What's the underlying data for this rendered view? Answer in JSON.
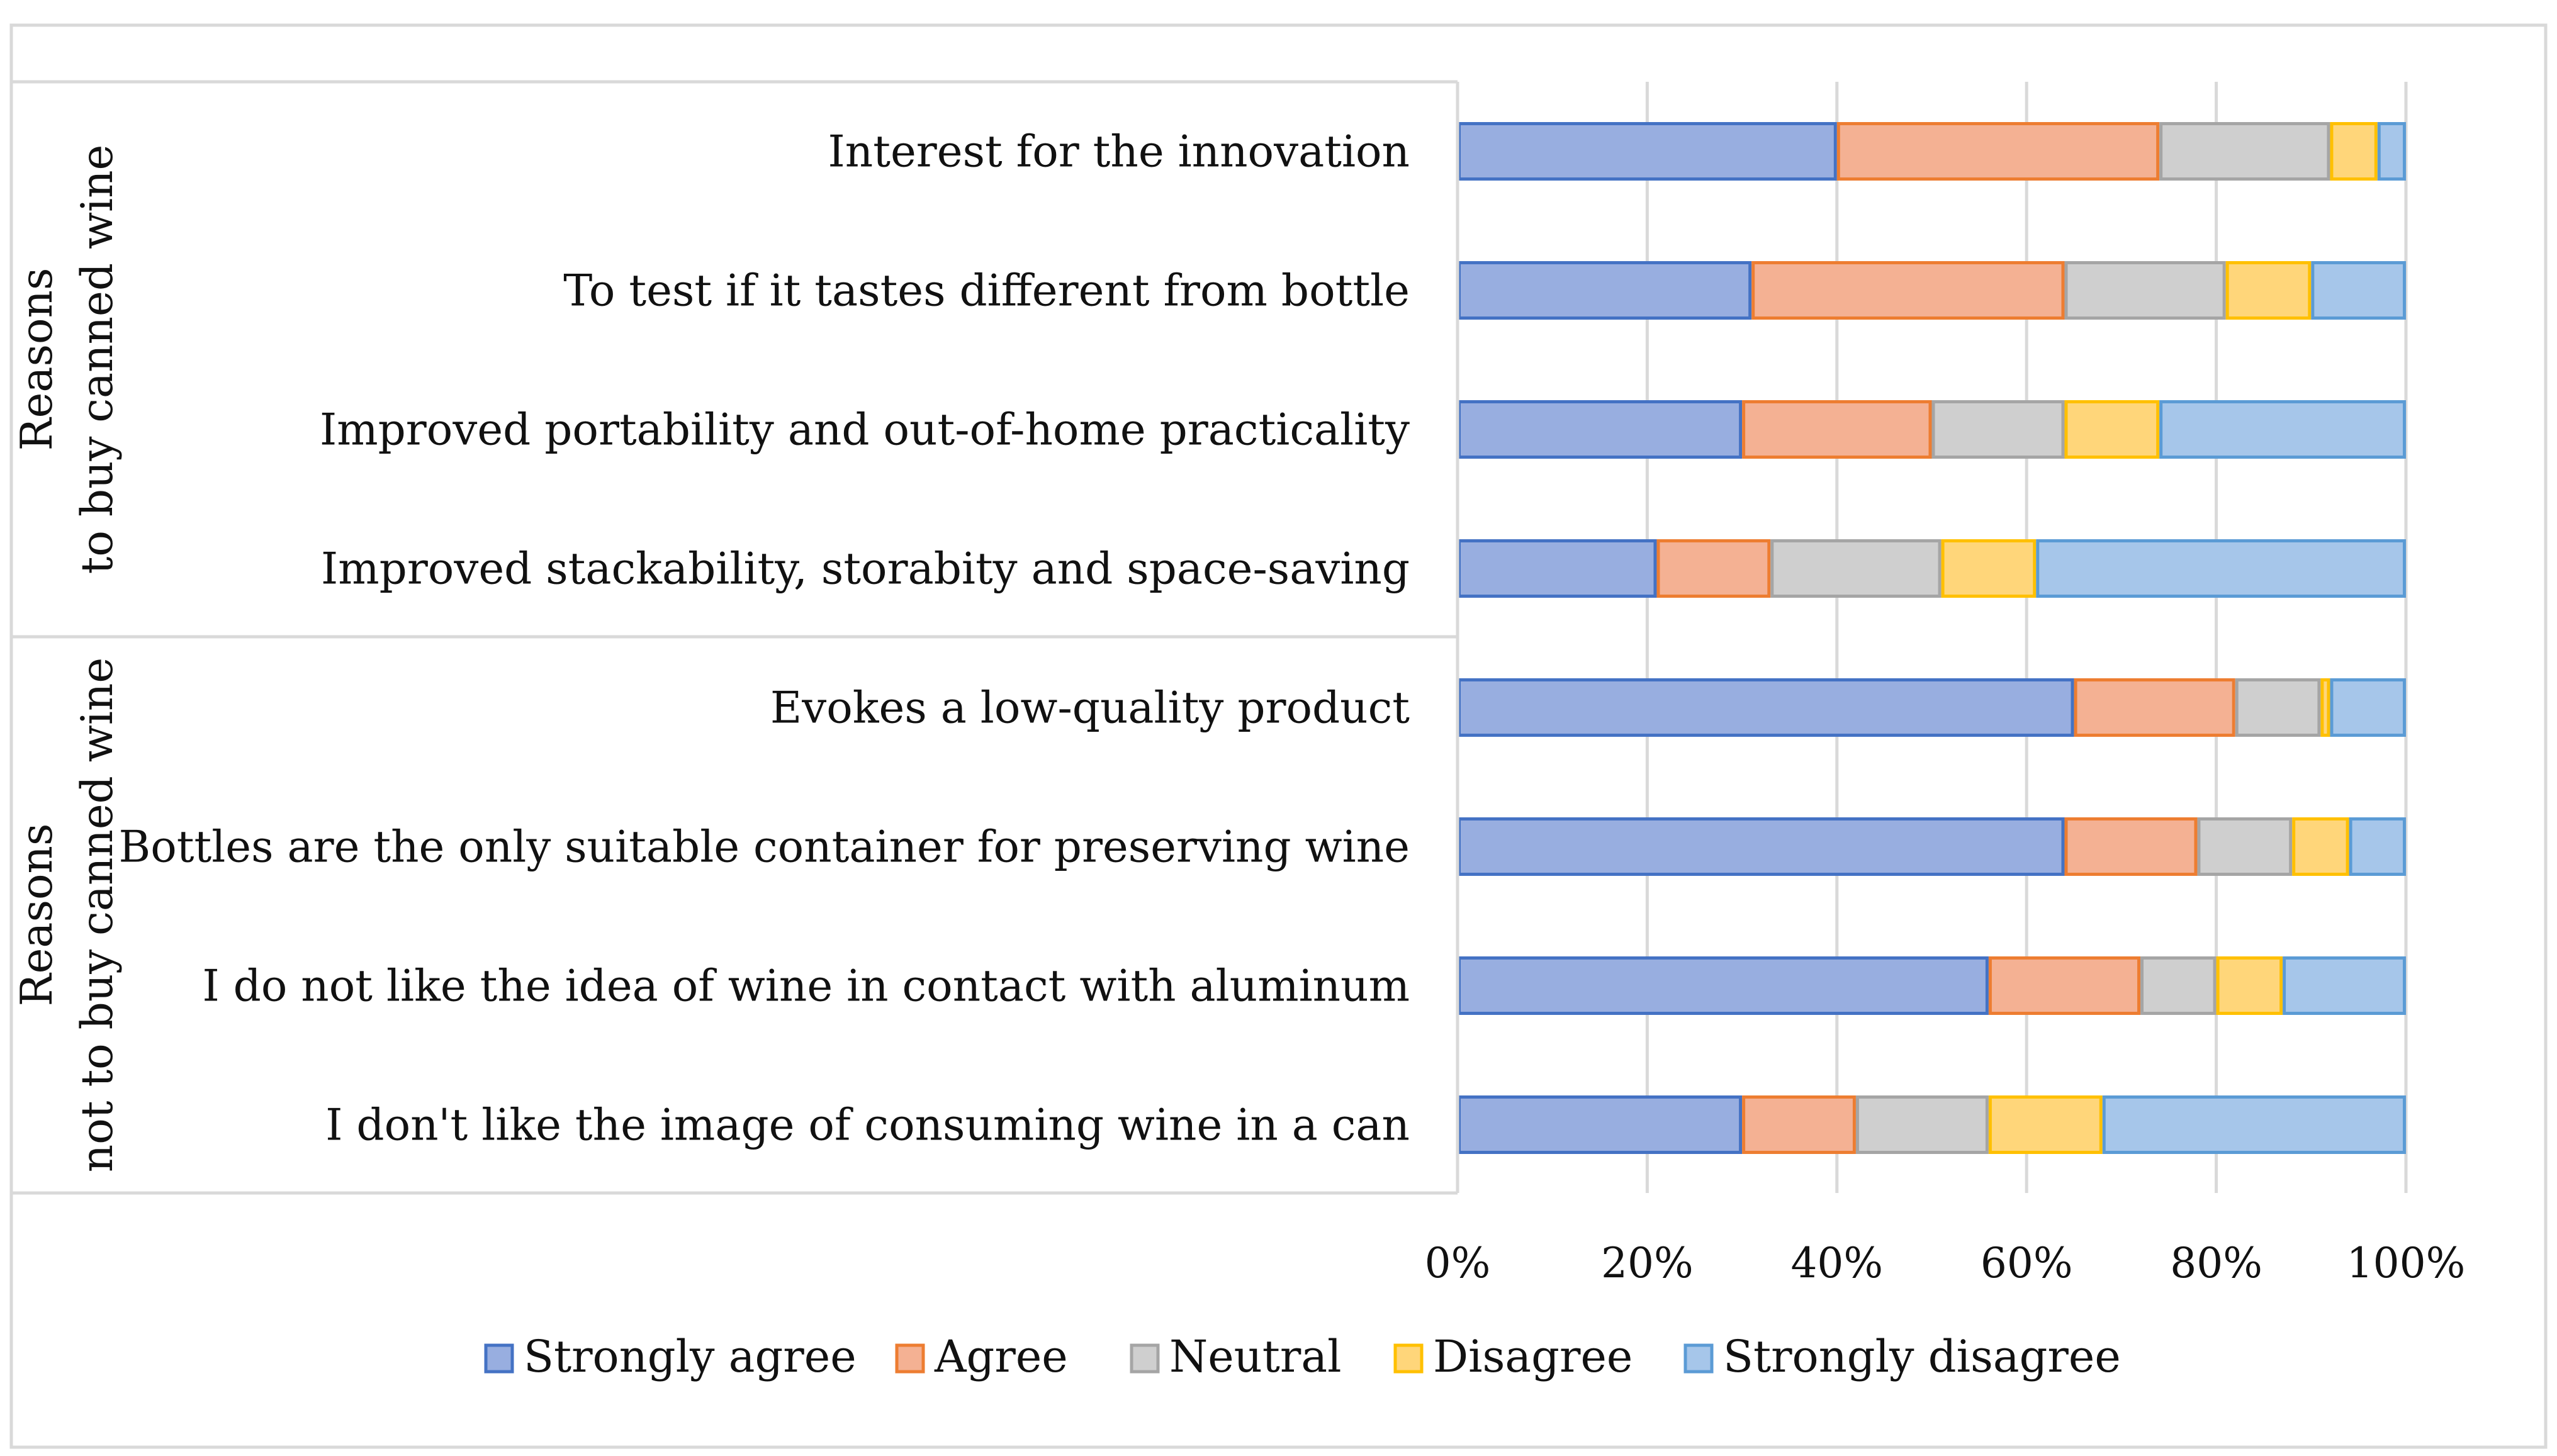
{
  "chart_data": {
    "type": "bar",
    "orientation": "horizontal",
    "stacked": "percent",
    "title": "",
    "xlabel": "",
    "ylabel": "",
    "xlim": [
      0,
      100
    ],
    "x_ticks": [
      "0%",
      "20%",
      "40%",
      "60%",
      "80%",
      "100%"
    ],
    "grid": true,
    "legend_position": "bottom",
    "groups": [
      {
        "label": [
          "Reasons",
          "to buy canned wine"
        ],
        "categories": [
          0,
          1,
          2,
          3
        ]
      },
      {
        "label": [
          "Reasons",
          "not to buy canned wine"
        ],
        "categories": [
          4,
          5,
          6,
          7
        ]
      }
    ],
    "categories": [
      "Interest for the innovation",
      "To test if it tastes different from bottle",
      "Improved portability and out-of-home practicality",
      "Improved stackability, storabity and space-saving",
      "Evokes a low-quality product",
      "Bottles are the only suitable container for preserving wine",
      "I do not like the idea of wine in contact with aluminum",
      "I don't like the image of consuming wine in a can"
    ],
    "series": [
      {
        "name": "Strongly agree",
        "values": [
          40,
          31,
          30,
          21,
          65,
          64,
          56,
          30
        ],
        "fill": "#98aee0",
        "stroke": "#4472c4"
      },
      {
        "name": "Agree",
        "values": [
          34,
          33,
          20,
          12,
          17,
          14,
          16,
          12
        ],
        "fill": "#f4b193",
        "stroke": "#ed7d31"
      },
      {
        "name": "Neutral",
        "values": [
          18,
          17,
          14,
          18,
          9,
          10,
          8,
          14
        ],
        "fill": "#cfcfcf",
        "stroke": "#a5a5a5"
      },
      {
        "name": "Disagree",
        "values": [
          5,
          9,
          10,
          10,
          1,
          6,
          7,
          12
        ],
        "fill": "#ffd67a",
        "stroke": "#ffc000"
      },
      {
        "name": "Strongly disagree",
        "values": [
          3,
          10,
          26,
          39,
          8,
          6,
          13,
          32
        ],
        "fill": "#a6c6ea",
        "stroke": "#5b9bd5"
      }
    ]
  }
}
